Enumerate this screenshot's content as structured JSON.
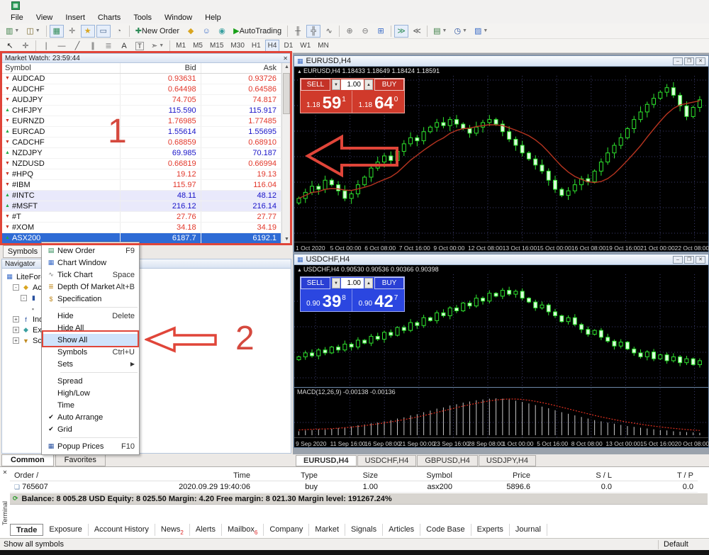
{
  "menubar": {
    "items": [
      "File",
      "View",
      "Insert",
      "Charts",
      "Tools",
      "Window",
      "Help"
    ]
  },
  "toolbar_main": [
    {
      "name": "new-chart-button",
      "glyph": "▥",
      "color": "#3a7d44",
      "dropdown": true
    },
    {
      "name": "profiles-button",
      "glyph": "◫",
      "color": "#7a6a2e",
      "dropdown": true
    },
    {
      "sep": true
    },
    {
      "name": "market-watch-toggle",
      "glyph": "▦",
      "color": "#2e8b57",
      "active": true
    },
    {
      "name": "data-window-toggle",
      "glyph": "✛",
      "color": "#666"
    },
    {
      "name": "navigator-toggle",
      "glyph": "★",
      "color": "#d9a520",
      "active": true
    },
    {
      "name": "terminal-toggle",
      "glyph": "▭",
      "color": "#46648c",
      "active": true
    },
    {
      "name": "strategy-tester-toggle",
      "glyph": "◔",
      "color": "#777"
    },
    {
      "sep": true
    },
    {
      "name": "new-order-button",
      "glyph": "✚",
      "color": "#2e8b57",
      "label": "New Order"
    },
    {
      "name": "metaeditor-button",
      "glyph": "◆",
      "color": "#d9a520"
    },
    {
      "name": "mql-community-button",
      "glyph": "☺",
      "color": "#3a6cc8"
    },
    {
      "name": "signals-button",
      "glyph": "◉",
      "color": "#3aa0a0"
    },
    {
      "name": "autotrading-button",
      "glyph": "▶",
      "color": "#18a018",
      "label": "AutoTrading"
    },
    {
      "sep": true
    },
    {
      "name": "bar-chart-button",
      "glyph": "╫",
      "color": "#555"
    },
    {
      "name": "candlestick-chart-button",
      "glyph": "╬",
      "color": "#555",
      "active": true
    },
    {
      "name": "line-chart-button",
      "glyph": "∿",
      "color": "#555"
    },
    {
      "sep": true
    },
    {
      "name": "zoom-in-button",
      "glyph": "⊕",
      "color": "#777"
    },
    {
      "name": "zoom-out-button",
      "glyph": "⊖",
      "color": "#777"
    },
    {
      "name": "tile-windows-button",
      "glyph": "⊞",
      "color": "#3a6cc8"
    },
    {
      "sep": true
    },
    {
      "name": "auto-scroll-button",
      "glyph": "≫",
      "color": "#2e8b57",
      "active": true
    },
    {
      "name": "chart-shift-button",
      "glyph": "≪",
      "color": "#555"
    },
    {
      "sep": true
    },
    {
      "name": "templates-button",
      "glyph": "▤",
      "color": "#3a7d44",
      "dropdown": true
    },
    {
      "name": "periods-button",
      "glyph": "◷",
      "color": "#2a52a0",
      "dropdown": true
    },
    {
      "name": "indicators-button",
      "glyph": "▨",
      "color": "#3a6cc8",
      "dropdown": true
    }
  ],
  "toolbar_draw": [
    {
      "name": "cursor-button",
      "glyph": "↖",
      "color": "#222"
    },
    {
      "name": "crosshair-button",
      "glyph": "✛",
      "color": "#555"
    },
    {
      "sep": true
    },
    {
      "name": "vertical-line-button",
      "glyph": "∣",
      "color": "#555"
    },
    {
      "name": "horizontal-line-button",
      "glyph": "―",
      "color": "#555"
    },
    {
      "name": "trendline-button",
      "glyph": "╱",
      "color": "#555"
    },
    {
      "name": "channel-button",
      "glyph": "∥",
      "color": "#555"
    },
    {
      "name": "fibonacci-button",
      "glyph": "≣",
      "color": "#888"
    },
    {
      "name": "text-button",
      "glyph": "A",
      "color": "#333"
    },
    {
      "name": "text-label-button",
      "glyph": "T",
      "color": "#333",
      "boxed": true
    },
    {
      "name": "arrows-button",
      "glyph": "➣",
      "color": "#555",
      "dropdown": true
    }
  ],
  "timeframes": {
    "items": [
      "M1",
      "M5",
      "M15",
      "M30",
      "H1",
      "H4",
      "D1",
      "W1",
      "MN"
    ],
    "active": "H4"
  },
  "market_watch": {
    "title": "Market Watch: 23:59:44",
    "columns": [
      "Symbol",
      "Bid",
      "Ask"
    ],
    "bottom_tab": "Symbols",
    "rows": [
      {
        "symbol": "AUDCAD",
        "bid": "0.93631",
        "ask": "0.93726",
        "dir": "down",
        "trend": "red"
      },
      {
        "symbol": "AUDCHF",
        "bid": "0.64498",
        "ask": "0.64586",
        "dir": "down",
        "trend": "red"
      },
      {
        "symbol": "AUDJPY",
        "bid": "74.705",
        "ask": "74.817",
        "dir": "down",
        "trend": "red"
      },
      {
        "symbol": "CHFJPY",
        "bid": "115.590",
        "ask": "115.917",
        "dir": "up",
        "trend": "blue"
      },
      {
        "symbol": "EURNZD",
        "bid": "1.76985",
        "ask": "1.77485",
        "dir": "down",
        "trend": "red"
      },
      {
        "symbol": "EURCAD",
        "bid": "1.55614",
        "ask": "1.55695",
        "dir": "up",
        "trend": "blue"
      },
      {
        "symbol": "CADCHF",
        "bid": "0.68859",
        "ask": "0.68910",
        "dir": "down",
        "trend": "red"
      },
      {
        "symbol": "NZDJPY",
        "bid": "69.985",
        "ask": "70.187",
        "dir": "up",
        "trend": "blue"
      },
      {
        "symbol": "NZDUSD",
        "bid": "0.66819",
        "ask": "0.66994",
        "dir": "down",
        "trend": "red"
      },
      {
        "symbol": "#HPQ",
        "bid": "19.12",
        "ask": "19.13",
        "dir": "down",
        "trend": "red"
      },
      {
        "symbol": "#IBM",
        "bid": "115.97",
        "ask": "116.04",
        "dir": "down",
        "trend": "red"
      },
      {
        "symbol": "#INTC",
        "bid": "48.11",
        "ask": "48.12",
        "dir": "up",
        "trend": "blue",
        "lav": true
      },
      {
        "symbol": "#MSFT",
        "bid": "216.12",
        "ask": "216.14",
        "dir": "up",
        "trend": "blue",
        "lav": true
      },
      {
        "symbol": "#T",
        "bid": "27.76",
        "ask": "27.77",
        "dir": "down",
        "trend": "red"
      },
      {
        "symbol": "#XOM",
        "bid": "34.18",
        "ask": "34.19",
        "dir": "down",
        "trend": "red"
      },
      {
        "symbol": "ASX200",
        "bid": "6187.7",
        "ask": "6192.1",
        "dir": "up",
        "trend": "sel",
        "selected": true
      }
    ]
  },
  "context_menu": {
    "items": [
      {
        "label": "New Order",
        "shortcut": "F9",
        "icon": "new-order-icon",
        "glyph": "▤",
        "color": "#2e8b57"
      },
      {
        "label": "Chart Window",
        "icon": "chart-window-icon",
        "glyph": "▦",
        "color": "#3a6cc8"
      },
      {
        "label": "Tick Chart",
        "shortcut": "Space",
        "icon": "tick-chart-icon",
        "glyph": "∿",
        "color": "#777"
      },
      {
        "label": "Depth Of Market",
        "shortcut": "Alt+B",
        "icon": "depth-of-market-icon",
        "glyph": "≣",
        "color": "#c08a20"
      },
      {
        "label": "Specification",
        "icon": "specification-icon",
        "glyph": "$",
        "color": "#c08a20"
      },
      {
        "sep": true
      },
      {
        "label": "Hide",
        "shortcut": "Delete"
      },
      {
        "label": "Hide All"
      },
      {
        "label": "Show All",
        "highlighted": true
      },
      {
        "label": "Symbols",
        "shortcut": "Ctrl+U"
      },
      {
        "label": "Sets",
        "submenu": true
      },
      {
        "sep": true
      },
      {
        "label": "Spread"
      },
      {
        "label": "High/Low"
      },
      {
        "label": "Time"
      },
      {
        "label": "Auto Arrange",
        "checked": true
      },
      {
        "label": "Grid",
        "checked": true
      },
      {
        "sep": true
      },
      {
        "label": "Popup Prices",
        "shortcut": "F10",
        "icon": "popup-prices-icon",
        "glyph": "▦",
        "color": "#2a52a0"
      }
    ]
  },
  "navigator": {
    "title": "Navigator",
    "items": [
      {
        "label": "LiteFore",
        "depth": 0,
        "icon": "broker-icon",
        "glyph": "▦",
        "color": "#3a6cc8"
      },
      {
        "label": "Acc",
        "depth": 1,
        "icon": "accounts-icon",
        "glyph": "◆",
        "color": "#d9a520",
        "expander": "-"
      },
      {
        "label": "",
        "depth": 2,
        "icon": "account-icon",
        "glyph": "▮",
        "color": "#2a52a0",
        "expander": "-"
      },
      {
        "label": "",
        "depth": 3,
        "icon": "account-leaf-icon",
        "glyph": "▪",
        "color": "#888"
      },
      {
        "label": "Indi",
        "depth": 1,
        "icon": "indicators-icon",
        "glyph": "f",
        "color": "#2a52a0",
        "expander": "+"
      },
      {
        "label": "Expe",
        "depth": 1,
        "icon": "experts-icon",
        "glyph": "◆",
        "color": "#3aa0a0",
        "expander": "+"
      },
      {
        "label": "Scri",
        "depth": 1,
        "icon": "scripts-icon",
        "glyph": "▼",
        "color": "#c08a20",
        "expander": "+"
      }
    ],
    "tabs": [
      "Common",
      "Favorites"
    ],
    "active_tab": "Common"
  },
  "charts": {
    "eurusd": {
      "window_title": "EURUSD,H4",
      "ohlc": "EURUSD,H4  1.18433 1.18649 1.18424 1.18591",
      "oneclick": {
        "sell_label": "SELL",
        "buy_label": "BUY",
        "volume": "1.00",
        "sell_small": "1.18",
        "sell_big": "59",
        "sell_sup": "1",
        "buy_small": "1.18",
        "buy_big": "64",
        "buy_sup": "0"
      },
      "axis": [
        "1 Oct 2020",
        "5 Oct 00:00",
        "6 Oct 08:00",
        "7 Oct 16:00",
        "9 Oct 00:00",
        "12 Oct 08:00",
        "13 Oct 16:00",
        "15 Oct 00:00",
        "16 Oct 08:00",
        "19 Oct 16:00",
        "21 Oct 00:00",
        "22 Oct 08:00"
      ]
    },
    "usdchf": {
      "window_title": "USDCHF,H4",
      "ohlc": "USDCHF,H4  0.90530 0.90536 0.90366 0.90398",
      "macd_label": "MACD(12,26,9) -0.00138 -0.00136",
      "oneclick": {
        "sell_label": "SELL",
        "buy_label": "BUY",
        "volume": "1.00",
        "sell_small": "0.90",
        "sell_big": "39",
        "sell_sup": "8",
        "buy_small": "0.90",
        "buy_big": "42",
        "buy_sup": "7"
      },
      "axis": [
        "9 Sep 2020",
        "11 Sep 16:00",
        "16 Sep 08:00",
        "21 Sep 00:00",
        "23 Sep 16:00",
        "28 Sep 08:00",
        "1 Oct 00:00",
        "5 Oct 16:00",
        "8 Oct 08:00",
        "13 Oct 00:00",
        "15 Oct 16:00",
        "20 Oct 08:00"
      ]
    }
  },
  "chart_tabs": {
    "items": [
      "EURUSD,H4",
      "USDCHF,H4",
      "GBPUSD,H4",
      "USDJPY,H4"
    ],
    "active": "EURUSD,H4"
  },
  "terminal": {
    "side_label": "Terminal",
    "columns": [
      "Order  /",
      "Time",
      "Type",
      "Size",
      "Symbol",
      "Price",
      "S / L",
      "T / P"
    ],
    "orders": [
      {
        "order": "765607",
        "time": "2020.09.29 19:40:06",
        "type": "buy",
        "size": "1.00",
        "symbol": "asx200",
        "price": "5896.6",
        "sl": "0.0",
        "tp": "0.0"
      }
    ],
    "balance_line": "Balance: 8 005.28 USD   Equity: 8 025.50   Margin: 4.20   Free margin: 8 021.30   Margin level: 191267.24%",
    "tabs": [
      {
        "label": "Trade",
        "active": true
      },
      {
        "label": "Exposure"
      },
      {
        "label": "Account History"
      },
      {
        "label": "News",
        "badge": "2"
      },
      {
        "label": "Alerts"
      },
      {
        "label": "Mailbox",
        "badge": "6"
      },
      {
        "label": "Company"
      },
      {
        "label": "Market"
      },
      {
        "label": "Signals"
      },
      {
        "label": "Articles"
      },
      {
        "label": "Code Base"
      },
      {
        "label": "Experts"
      },
      {
        "label": "Journal"
      }
    ]
  },
  "status_bar": {
    "left": "Show all symbols",
    "right": "Default"
  },
  "annotations": {
    "step1": "1",
    "step2": "2",
    "color": "#e04539"
  },
  "colors": {
    "bid_red": "#e2372a",
    "bid_blue": "#1813c8",
    "candle": "#2ee52e",
    "ma_line": "#b63420",
    "grid": "#3c3c6e",
    "sell_panel_red": "#d03a2b",
    "sell_panel_blue": "#2b46e0",
    "selected_row": "#2e6bd5"
  },
  "chart_data": [
    {
      "type": "candlestick",
      "symbol": "EURUSD",
      "timeframe": "H4",
      "title": "EURUSD,H4",
      "ohlc_display": [
        1.18433,
        1.18649,
        1.18424,
        1.18591
      ],
      "x_labels": [
        "1 Oct 2020",
        "5 Oct 00:00",
        "6 Oct 08:00",
        "7 Oct 16:00",
        "9 Oct 00:00",
        "12 Oct 08:00",
        "13 Oct 16:00",
        "15 Oct 00:00",
        "16 Oct 08:00",
        "19 Oct 16:00",
        "21 Oct 00:00",
        "22 Oct 08:00"
      ],
      "y_axis_visible": false,
      "overlays": [
        "red moving average line"
      ],
      "closes_norm": [
        0.22,
        0.26,
        0.3,
        0.28,
        0.34,
        0.31,
        0.27,
        0.22,
        0.25,
        0.31,
        0.36,
        0.42,
        0.46,
        0.5,
        0.47,
        0.53,
        0.58,
        0.62,
        0.6,
        0.66,
        0.69,
        0.72,
        0.7,
        0.74,
        0.71,
        0.68,
        0.65,
        0.69,
        0.72,
        0.74,
        0.71,
        0.66,
        0.61,
        0.57,
        0.52,
        0.48,
        0.44,
        0.4,
        0.34,
        0.28,
        0.24,
        0.27,
        0.31,
        0.35,
        0.33,
        0.4,
        0.46,
        0.52,
        0.57,
        0.62,
        0.68,
        0.74,
        0.79,
        0.84,
        0.88,
        0.92,
        0.95,
        0.9,
        0.83,
        0.76,
        0.82,
        0.87
      ]
    },
    {
      "type": "candlestick",
      "symbol": "USDCHF",
      "timeframe": "H4",
      "title": "USDCHF,H4",
      "ohlc_display": [
        0.9053,
        0.90536,
        0.90366,
        0.90398
      ],
      "x_labels": [
        "9 Sep 2020",
        "11 Sep 16:00",
        "16 Sep 08:00",
        "21 Sep 00:00",
        "23 Sep 16:00",
        "28 Sep 08:00",
        "1 Oct 00:00",
        "5 Oct 16:00",
        "8 Oct 08:00",
        "13 Oct 00:00",
        "15 Oct 16:00",
        "20 Oct 08:00"
      ],
      "y_axis_visible": false,
      "overlays": [],
      "closes_norm": [
        0.2,
        0.24,
        0.21,
        0.27,
        0.24,
        0.3,
        0.27,
        0.33,
        0.3,
        0.37,
        0.34,
        0.41,
        0.38,
        0.45,
        0.42,
        0.5,
        0.47,
        0.55,
        0.52,
        0.6,
        0.57,
        0.65,
        0.62,
        0.7,
        0.67,
        0.75,
        0.72,
        0.8,
        0.77,
        0.85,
        0.82,
        0.88,
        0.84,
        0.87,
        0.8,
        0.76,
        0.7,
        0.73,
        0.66,
        0.62,
        0.56,
        0.6,
        0.53,
        0.48,
        0.43,
        0.47,
        0.4,
        0.36,
        0.31,
        0.35,
        0.28,
        0.24,
        0.2,
        0.25,
        0.18,
        0.22,
        0.16,
        0.2,
        0.14,
        0.18,
        0.12,
        0.16
      ]
    },
    {
      "type": "bar",
      "title": "MACD(12,26,9)",
      "current_values": [
        -0.00138,
        -0.00136
      ],
      "bar_color": "#c8c8c8",
      "signal_line": "red dotted",
      "values_norm": [
        0.1,
        0.12,
        0.13,
        0.15,
        0.14,
        0.16,
        0.18,
        0.2,
        0.22,
        0.25,
        0.27,
        0.3,
        0.32,
        0.35,
        0.38,
        0.42,
        0.45,
        0.5,
        0.53,
        0.58,
        0.62,
        0.67,
        0.7,
        0.75,
        0.78,
        0.82,
        0.85,
        0.88,
        0.9,
        0.92,
        0.93,
        0.92,
        0.9,
        0.87,
        0.84,
        0.8,
        0.76,
        0.72,
        0.68,
        0.63,
        0.58,
        0.54,
        0.5,
        0.46,
        0.42,
        0.38,
        0.35,
        0.32,
        0.29,
        0.26,
        0.23,
        0.21,
        0.19,
        0.17,
        0.15,
        0.13,
        0.12,
        0.1,
        0.09,
        0.08,
        0.07,
        0.06
      ]
    }
  ]
}
